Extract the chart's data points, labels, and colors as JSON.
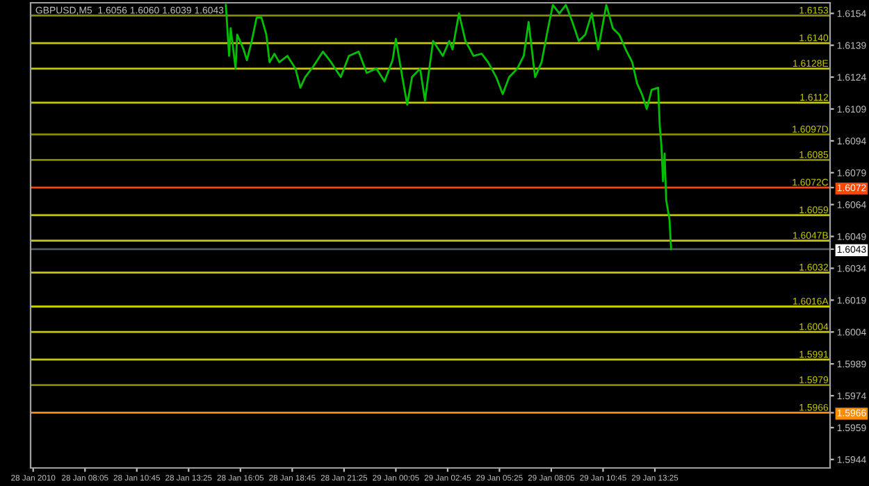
{
  "chart_data": {
    "type": "line",
    "title": "GBPUSD,M5  1.6056 1.6060 1.6039 1.6043",
    "x": [
      "2010-01-28T15:20",
      "2010-01-28T15:30",
      "2010-01-28T15:35",
      "2010-01-28T15:50",
      "2010-01-28T15:55",
      "2010-01-28T16:15",
      "2010-01-28T16:25",
      "2010-01-28T16:40",
      "2010-01-28T16:55",
      "2010-01-28T17:10",
      "2010-01-28T17:25",
      "2010-01-28T17:35",
      "2010-01-28T17:50",
      "2010-01-28T18:05",
      "2010-01-28T18:30",
      "2010-01-28T18:55",
      "2010-01-28T19:10",
      "2010-01-28T19:25",
      "2010-01-28T19:50",
      "2010-01-28T20:20",
      "2010-01-28T20:45",
      "2010-01-28T21:15",
      "2010-01-28T21:40",
      "2010-01-28T22:10",
      "2010-01-28T22:35",
      "2010-01-28T23:05",
      "2010-01-28T23:30",
      "2010-01-28T23:55",
      "2010-01-29T00:05",
      "2010-01-29T00:25",
      "2010-01-29T00:40",
      "2010-01-29T00:55",
      "2010-01-29T01:20",
      "2010-01-29T01:35",
      "2010-01-29T02:00",
      "2010-01-29T02:30",
      "2010-01-29T02:50",
      "2010-01-29T03:00",
      "2010-01-29T03:20",
      "2010-01-29T03:40",
      "2010-01-29T04:05",
      "2010-01-29T04:30",
      "2010-01-29T04:50",
      "2010-01-29T05:15",
      "2010-01-29T05:35",
      "2010-01-29T05:55",
      "2010-01-29T06:20",
      "2010-01-29T06:40",
      "2010-01-29T06:55",
      "2010-01-29T07:15",
      "2010-01-29T07:35",
      "2010-01-29T07:55",
      "2010-01-29T08:10",
      "2010-01-29T08:30",
      "2010-01-29T08:50",
      "2010-01-29T09:10",
      "2010-01-29T09:30",
      "2010-01-29T09:50",
      "2010-01-29T10:10",
      "2010-01-29T10:30",
      "2010-01-29T10:55",
      "2010-01-29T11:15",
      "2010-01-29T11:35",
      "2010-01-29T11:55",
      "2010-01-29T12:15",
      "2010-01-29T12:30",
      "2010-01-29T12:45",
      "2010-01-29T13:00",
      "2010-01-29T13:15",
      "2010-01-29T13:35",
      "2010-01-29T13:40",
      "2010-01-29T13:45",
      "2010-01-29T13:50",
      "2010-01-29T13:55",
      "2010-01-29T14:00",
      "2010-01-29T14:10",
      "2010-01-29T14:15"
    ],
    "series": [
      {
        "color": "#00c000",
        "values": [
          1.6158,
          1.6134,
          1.6147,
          1.6128,
          1.6144,
          1.6137,
          1.6132,
          1.6141,
          1.6152,
          1.6152,
          1.6144,
          1.6131,
          1.6135,
          1.6131,
          1.6134,
          1.6128,
          1.6119,
          1.6124,
          1.6129,
          1.6136,
          1.6131,
          1.6124,
          1.6134,
          1.6136,
          1.6126,
          1.6128,
          1.6122,
          1.6132,
          1.6142,
          1.6124,
          1.6111,
          1.6124,
          1.6128,
          1.6113,
          1.6141,
          1.6134,
          1.6141,
          1.6137,
          1.6154,
          1.6141,
          1.6134,
          1.6135,
          1.6131,
          1.6124,
          1.6116,
          1.6124,
          1.6128,
          1.6134,
          1.615,
          1.6124,
          1.6131,
          1.6147,
          1.6158,
          1.6154,
          1.6158,
          1.615,
          1.6141,
          1.6144,
          1.6154,
          1.6137,
          1.6158,
          1.6147,
          1.6144,
          1.6137,
          1.6131,
          1.6121,
          1.6116,
          1.6109,
          1.6118,
          1.6119,
          1.6101,
          1.6092,
          1.6075,
          1.6088,
          1.6066,
          1.6057,
          1.6043
        ]
      }
    ],
    "xlim": [
      "2010-01-28T05:17",
      "2010-01-29T22:26"
    ],
    "xticks": [
      {
        "value": "2010-01-28T05:25",
        "label": "28 Jan 2010"
      },
      {
        "value": "2010-01-28T08:05",
        "label": "28 Jan 08:05"
      },
      {
        "value": "2010-01-28T10:45",
        "label": "28 Jan 10:45"
      },
      {
        "value": "2010-01-28T13:25",
        "label": "28 Jan 13:25"
      },
      {
        "value": "2010-01-28T16:05",
        "label": "28 Jan 16:05"
      },
      {
        "value": "2010-01-28T18:45",
        "label": "28 Jan 18:45"
      },
      {
        "value": "2010-01-28T21:25",
        "label": "28 Jan 21:25"
      },
      {
        "value": "2010-01-29T00:05",
        "label": "29 Jan 00:05"
      },
      {
        "value": "2010-01-29T02:45",
        "label": "29 Jan 02:45"
      },
      {
        "value": "2010-01-29T05:25",
        "label": "29 Jan 05:25"
      },
      {
        "value": "2010-01-29T08:05",
        "label": "29 Jan 08:05"
      },
      {
        "value": "2010-01-29T10:45",
        "label": "29 Jan 10:45"
      },
      {
        "value": "2010-01-29T13:25",
        "label": "29 Jan 13:25"
      }
    ],
    "ylim": [
      1.594,
      1.6159
    ],
    "yticks": [
      1.6154,
      1.6139,
      1.6124,
      1.6109,
      1.6094,
      1.6079,
      {
        "value": 1.6072,
        "label": "1.6072"
      },
      1.6064,
      1.6049,
      {
        "value": 1.6043,
        "label": "1.6043"
      },
      1.6034,
      1.6019,
      1.6004,
      1.5989,
      1.5974,
      {
        "value": 1.5966,
        "label": "1.5966"
      },
      1.5959,
      1.5944
    ],
    "ref_lines": [
      {
        "axis": "y",
        "value": 1.6153,
        "label": "1.6153",
        "color": "#8a8a00"
      },
      {
        "axis": "y",
        "value": 1.614,
        "label": "1.6140",
        "color": "#c8c800"
      },
      {
        "axis": "y",
        "value": 1.6128,
        "label": "1.6128E",
        "color": "#c8c800"
      },
      {
        "axis": "y",
        "value": 1.6112,
        "label": "1.6112",
        "color": "#c8c800"
      },
      {
        "axis": "y",
        "value": 1.6097,
        "label": "1.6097D",
        "color": "#8a8a00"
      },
      {
        "axis": "y",
        "value": 1.6085,
        "label": "1.6085",
        "color": "#8a8a00"
      },
      {
        "axis": "y",
        "value": 1.6072,
        "label": "1.6072C",
        "color": "#ff4500"
      },
      {
        "axis": "y",
        "value": 1.6059,
        "label": "1.6059",
        "color": "#c8c800"
      },
      {
        "axis": "y",
        "value": 1.6047,
        "label": "1.6047B",
        "color": "#c8c800"
      },
      {
        "axis": "y",
        "value": 1.6043,
        "label": null,
        "color": "#505a66"
      },
      {
        "axis": "y",
        "value": 1.6032,
        "label": "1.6032",
        "color": "#c8c800"
      },
      {
        "axis": "y",
        "value": 1.6016,
        "label": "1.6016A",
        "color": "#c8c800"
      },
      {
        "axis": "y",
        "value": 1.6004,
        "label": "1.6004",
        "color": "#c8c800"
      },
      {
        "axis": "y",
        "value": 1.5991,
        "label": "1.5991",
        "color": "#c8c800"
      },
      {
        "axis": "y",
        "value": 1.5979,
        "label": "1.5979",
        "color": "#8a8a00"
      },
      {
        "axis": "y",
        "value": 1.5966,
        "label": "1.5966",
        "color": "#ff8c00"
      }
    ],
    "grid": false,
    "legend": false,
    "marker": "none",
    "line_style": "solid"
  }
}
